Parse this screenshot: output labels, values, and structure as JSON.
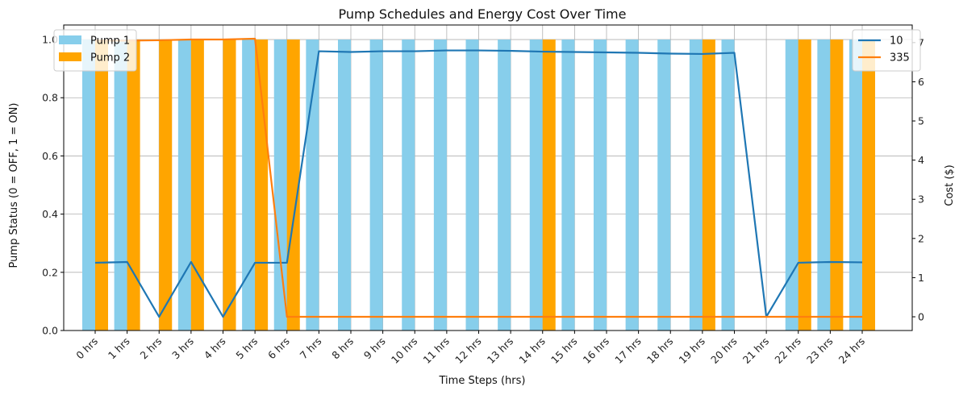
{
  "chart_data": {
    "type": "bar",
    "title": "Pump Schedules and Energy Cost Over Time",
    "xlabel": "Time Steps (hrs)",
    "ylabel": "Pump Status (0 = OFF, 1 = ON)",
    "y2label": "Cost ($)",
    "categories": [
      "0 hrs",
      "1 hrs",
      "2 hrs",
      "3 hrs",
      "4 hrs",
      "5 hrs",
      "6 hrs",
      "7 hrs",
      "8 hrs",
      "9 hrs",
      "10 hrs",
      "11 hrs",
      "12 hrs",
      "13 hrs",
      "14 hrs",
      "15 hrs",
      "16 hrs",
      "17 hrs",
      "18 hrs",
      "19 hrs",
      "20 hrs",
      "21 hrs",
      "22 hrs",
      "23 hrs",
      "24 hrs"
    ],
    "ylim": [
      0,
      1.05
    ],
    "y2lim": [
      -0.35,
      7.45
    ],
    "yticks": [
      "0.0",
      "0.2",
      "0.4",
      "0.6",
      "0.8",
      "1.0"
    ],
    "y2ticks": [
      "0",
      "1",
      "2",
      "3",
      "4",
      "5",
      "6",
      "7"
    ],
    "grid": true,
    "bar_series": [
      {
        "name": "Pump 1",
        "color": "#87CEEB",
        "values": [
          1,
          1,
          0,
          1,
          0,
          1,
          1,
          1,
          1,
          1,
          1,
          1,
          1,
          1,
          1,
          1,
          1,
          1,
          1,
          1,
          1,
          0,
          1,
          1,
          1
        ]
      },
      {
        "name": "Pump 2",
        "color": "#FFA500",
        "values": [
          1,
          1,
          1,
          1,
          1,
          1,
          1,
          0,
          0,
          0,
          0,
          0,
          0,
          0,
          1,
          0,
          0,
          0,
          0,
          1,
          0,
          0,
          1,
          1,
          1
        ]
      }
    ],
    "line_series": [
      {
        "name": "10",
        "color": "#1f77b4",
        "values": [
          1.38,
          1.4,
          0.0,
          1.4,
          0.0,
          1.38,
          1.38,
          6.78,
          6.76,
          6.78,
          6.78,
          6.8,
          6.8,
          6.79,
          6.77,
          6.76,
          6.75,
          6.74,
          6.72,
          6.71,
          6.74,
          0.0,
          1.38,
          1.4,
          1.39
        ]
      },
      {
        "name": "335",
        "color": "#ff7f0e",
        "values": [
          7.05,
          7.05,
          7.06,
          7.08,
          7.08,
          7.1,
          0.0,
          0.0,
          0.0,
          0.0,
          0.0,
          0.0,
          0.0,
          0.0,
          0.0,
          0.0,
          0.0,
          0.0,
          0.0,
          0.0,
          0.0,
          0.0,
          0.0,
          0.0,
          0.0
        ]
      }
    ],
    "legend_left": {
      "placement": "upper-left",
      "entries": [
        "Pump 1",
        "Pump 2"
      ]
    },
    "legend_right": {
      "placement": "upper-right",
      "entries": [
        "10",
        "335"
      ]
    }
  }
}
